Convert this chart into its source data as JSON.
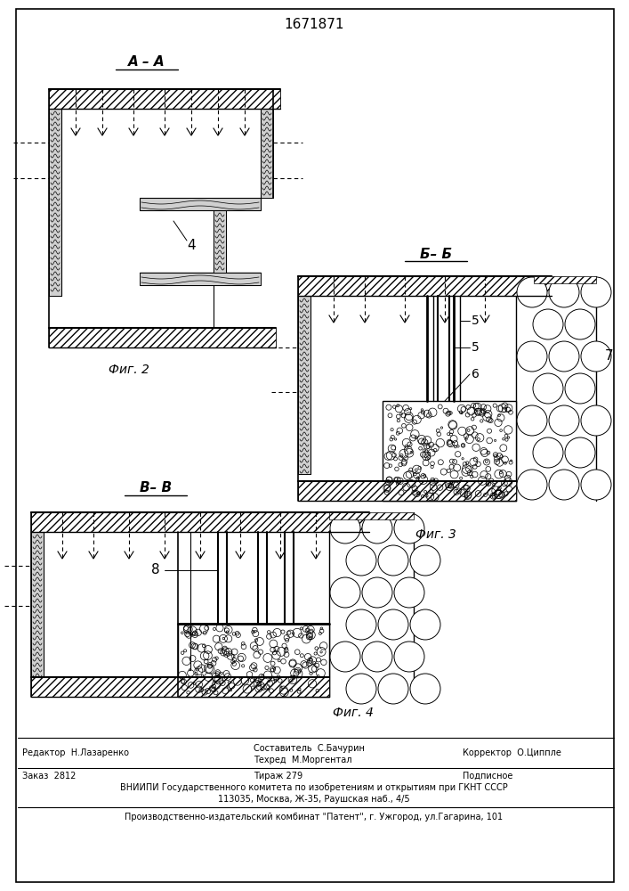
{
  "title_number": "1671871",
  "bg_color": "#ffffff",
  "line_color": "#000000",
  "footer": {
    "editor": "Редактор  Н.Лазаренко",
    "composer": "Составитель  С.Бачурин",
    "techred": "Техред  М.Моргентал",
    "corrector": "Корректор  О.Циппле",
    "order": "Заказ  2812",
    "tirazh": "Тираж 279",
    "podpisnoe": "Подписное",
    "vniip": "ВНИИПИ Государственного комитета по изобретениям и открытиям при ГКНТ СССР",
    "address": "113035, Москва, Ж-35, Раушская наб., 4/5",
    "plant": "Производственно-издательский комбинат \"Патент\", г. Ужгород, ул.Гагарина, 101"
  }
}
